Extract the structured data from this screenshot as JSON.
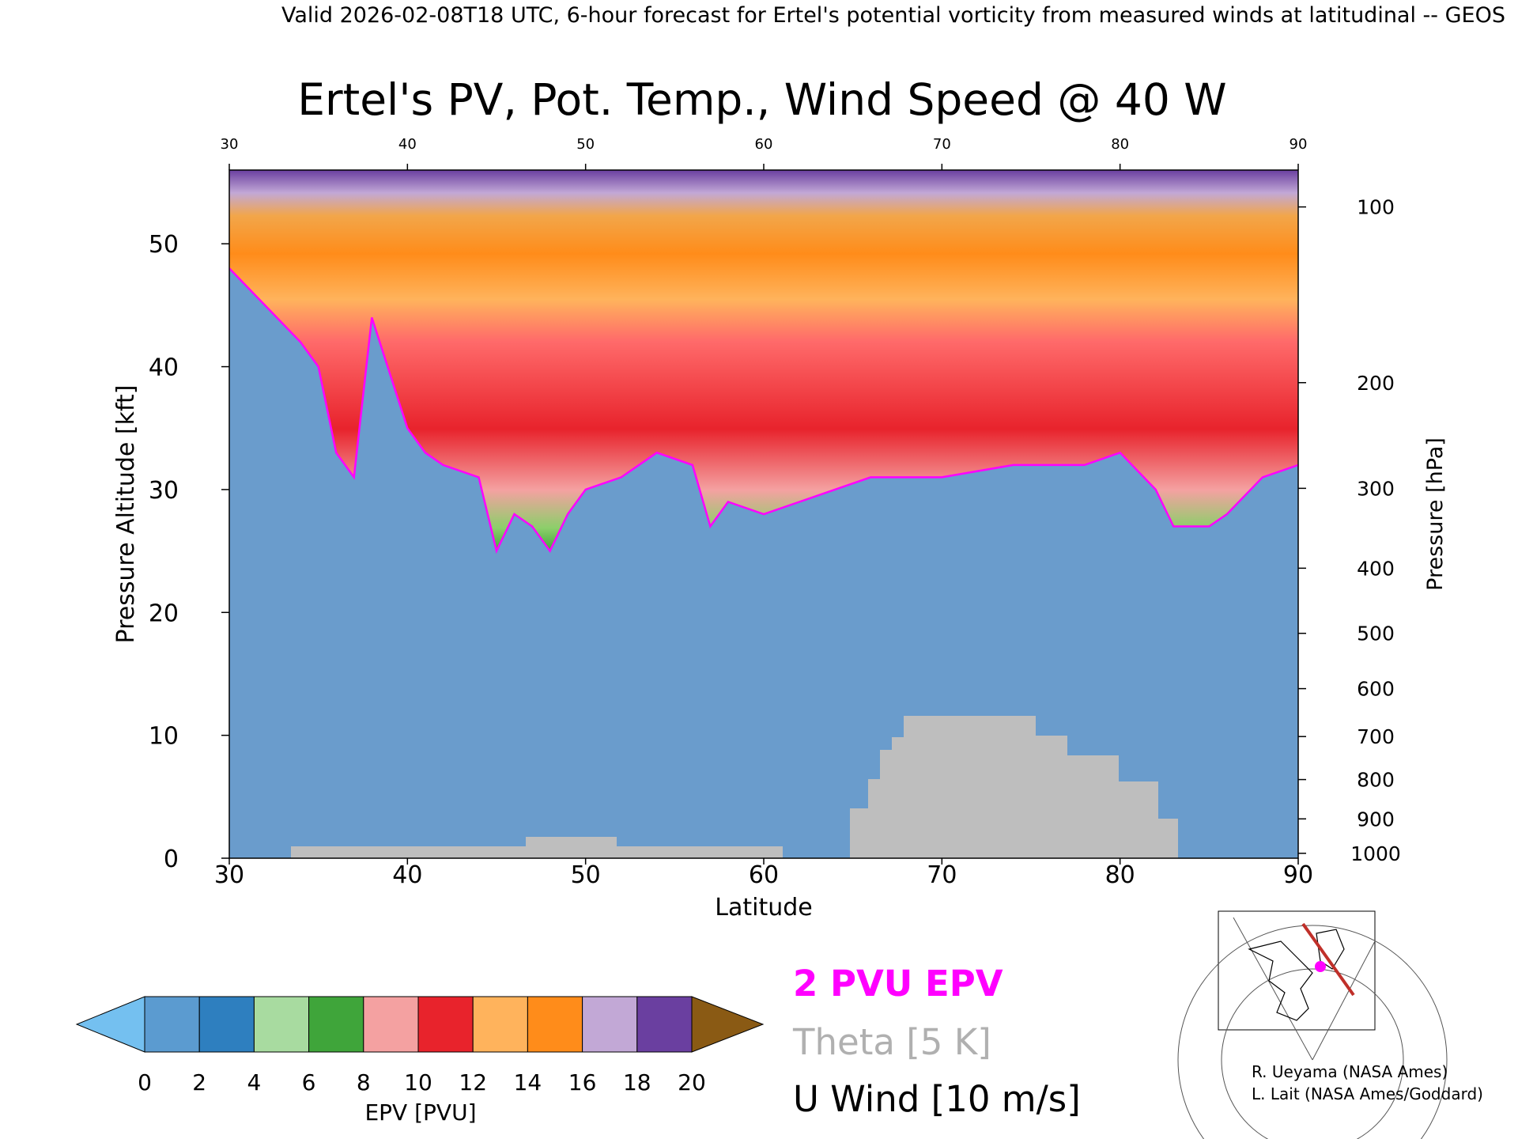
{
  "header": {
    "valid_line": "Valid 2026-02-08T18 UTC, 6-hour forecast for Ertel's potential vorticity from measured winds at latitudinal -- GEOS"
  },
  "chart_data": {
    "type": "heatmap",
    "title": "Ertel's PV, Pot. Temp., Wind Speed @ 40 W",
    "xlabel": "Latitude",
    "ylabel": "Pressure Altitude [kft]",
    "y2label": "Pressure [hPa]",
    "x_range": [
      30,
      90
    ],
    "y_range": [
      0,
      56
    ],
    "x_ticks": [
      30,
      40,
      50,
      60,
      70,
      80,
      90
    ],
    "y_ticks": [
      0,
      10,
      20,
      30,
      40,
      50
    ],
    "pressure_ticks": [
      {
        "label": "100",
        "kft": 53.0
      },
      {
        "label": "200",
        "kft": 38.7
      },
      {
        "label": "300",
        "kft": 30.1
      },
      {
        "label": "400",
        "kft": 23.6
      },
      {
        "label": "500",
        "kft": 18.3
      },
      {
        "label": "600",
        "kft": 13.8
      },
      {
        "label": "700",
        "kft": 9.9
      },
      {
        "label": "800",
        "kft": 6.4
      },
      {
        "label": "900",
        "kft": 3.2
      },
      {
        "label": "1000",
        "kft": 0.4
      }
    ],
    "two_pvu_level_kft": [
      [
        30,
        48
      ],
      [
        32,
        45
      ],
      [
        34,
        42
      ],
      [
        35,
        40
      ],
      [
        36,
        33
      ],
      [
        37,
        31
      ],
      [
        38,
        44
      ],
      [
        40,
        35
      ],
      [
        41,
        33
      ],
      [
        42,
        32
      ],
      [
        44,
        31
      ],
      [
        45,
        25
      ],
      [
        46,
        28
      ],
      [
        47,
        27
      ],
      [
        48,
        25
      ],
      [
        49,
        28
      ],
      [
        50,
        30
      ],
      [
        52,
        31
      ],
      [
        54,
        33
      ],
      [
        56,
        32
      ],
      [
        57,
        27
      ],
      [
        58,
        29
      ],
      [
        60,
        28
      ],
      [
        62,
        29
      ],
      [
        64,
        30
      ],
      [
        66,
        31
      ],
      [
        70,
        31
      ],
      [
        74,
        32
      ],
      [
        78,
        32
      ],
      [
        80,
        33
      ],
      [
        82,
        30
      ],
      [
        83,
        27
      ],
      [
        85,
        27
      ],
      [
        86,
        28
      ],
      [
        88,
        31
      ],
      [
        90,
        32
      ]
    ],
    "colorbar": {
      "label": "EPV [PVU]",
      "ticks": [
        0,
        2,
        4,
        6,
        8,
        10,
        12,
        14,
        16,
        18,
        20
      ],
      "colors": [
        "#5b9bd0",
        "#2e7fbf",
        "#a8dba0",
        "#3fa53a",
        "#f4a1a1",
        "#e8232c",
        "#ffb35c",
        "#ff8c1a",
        "#c2a8d6",
        "#6a3fa0",
        "#f5f0a0"
      ],
      "under_color": "#74c0f0",
      "over_color": "#8a5a14"
    },
    "legend": [
      {
        "label": "2 PVU EPV",
        "color": "#ff00ff"
      },
      {
        "label": "Theta [5 K]",
        "color": "#b0b0b0"
      },
      {
        "label": "U Wind [10 m/s]",
        "color": "#000000"
      }
    ]
  },
  "credits": [
    "R. Ueyama (NASA Ames)",
    "L. Lait (NASA Ames/Goddard)"
  ],
  "colors": {
    "troposphere": "#6a9ccc",
    "terrain": "#bebebe",
    "pv_contour": "#ff00ff"
  }
}
